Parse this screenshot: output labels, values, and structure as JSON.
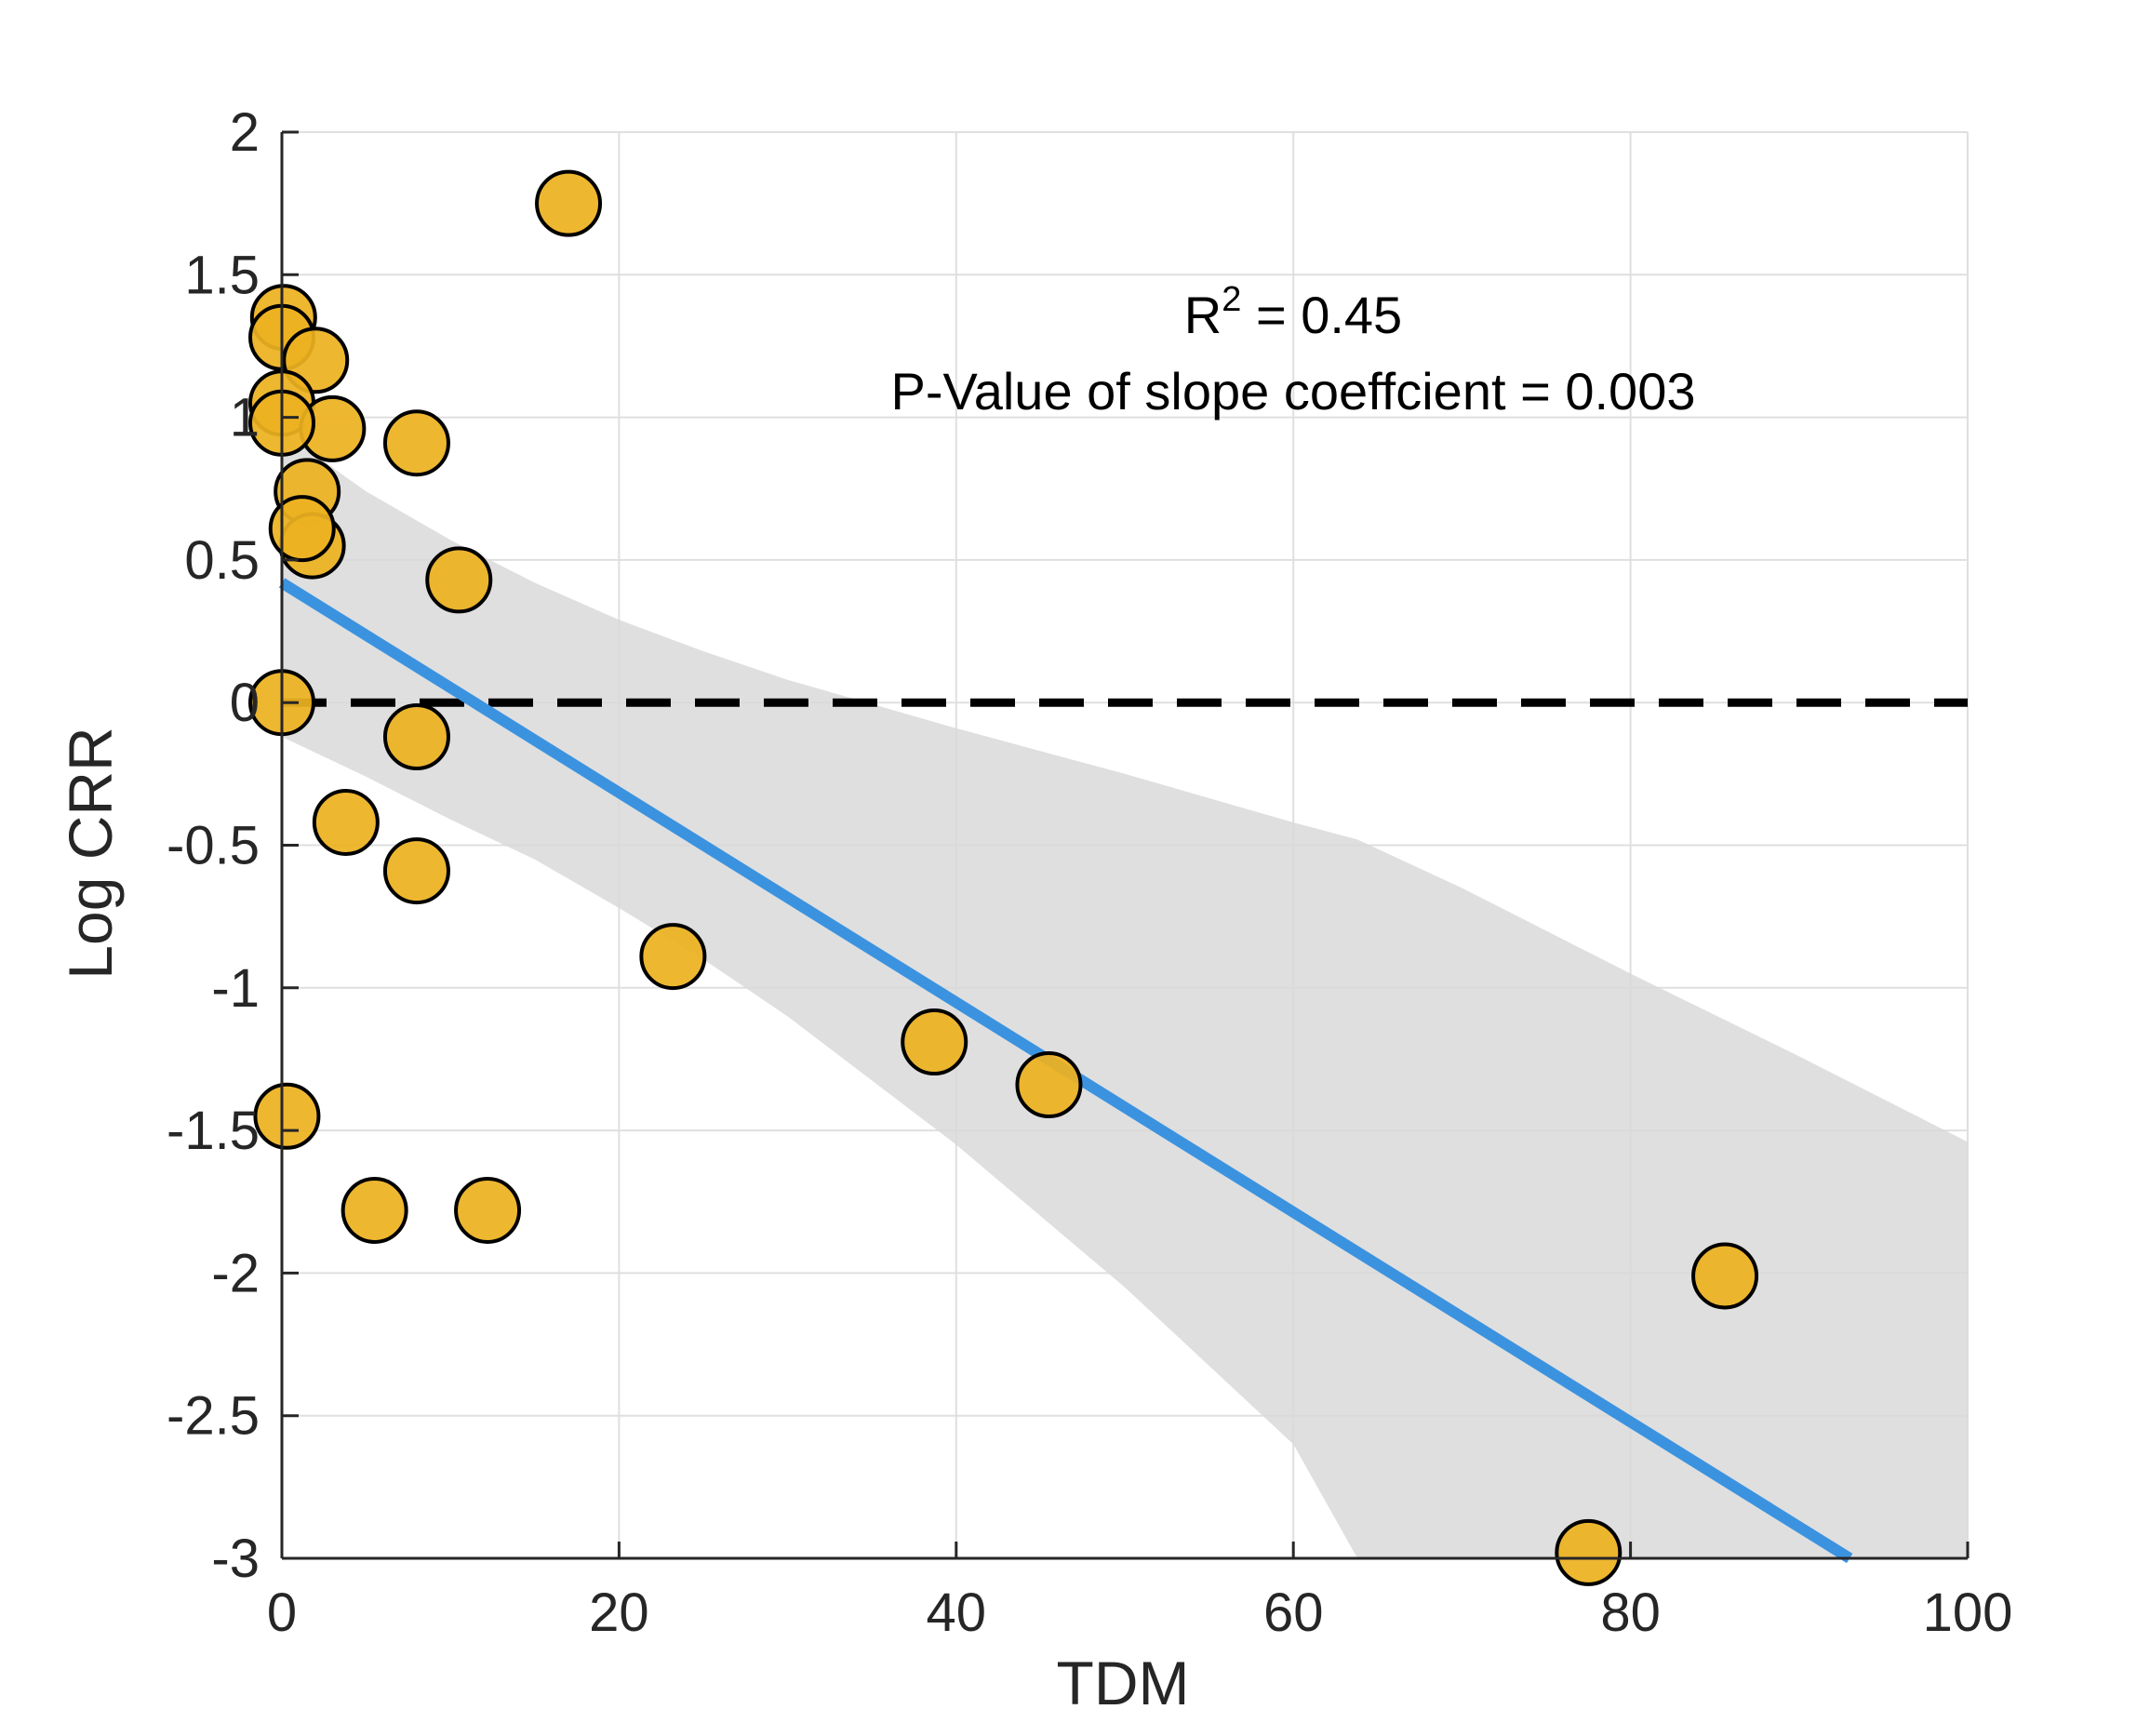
{
  "chart_data": {
    "type": "scatter",
    "title": "",
    "xlabel": "TDM",
    "ylabel": "Log CRR",
    "xlim": [
      0,
      100
    ],
    "ylim": [
      -3,
      2
    ],
    "xticks": [
      0,
      20,
      40,
      60,
      80,
      100
    ],
    "xtick_labels": [
      "0",
      "20",
      "40",
      "60",
      "80",
      "100"
    ],
    "yticks": [
      -3,
      -2.5,
      -2,
      -1.5,
      -1,
      -0.5,
      0,
      0.5,
      1,
      1.5,
      2
    ],
    "ytick_labels": [
      "-3",
      "-2.5",
      "-2",
      "-1.5",
      "-1",
      "-0.5",
      "0",
      "0.5",
      "1",
      "1.5",
      "2"
    ],
    "grid": true,
    "points": [
      {
        "x": 17.0,
        "y": 1.75
      },
      {
        "x": 0.1,
        "y": 1.35
      },
      {
        "x": 0.0,
        "y": 1.28
      },
      {
        "x": 2.0,
        "y": 1.2
      },
      {
        "x": 0.0,
        "y": 1.05
      },
      {
        "x": 3.0,
        "y": 0.96
      },
      {
        "x": 0.0,
        "y": 0.98
      },
      {
        "x": 8.0,
        "y": 0.91
      },
      {
        "x": 1.5,
        "y": 0.74
      },
      {
        "x": 1.8,
        "y": 0.55
      },
      {
        "x": 1.2,
        "y": 0.61
      },
      {
        "x": 10.5,
        "y": 0.43
      },
      {
        "x": 0.0,
        "y": 0.0
      },
      {
        "x": 8.0,
        "y": -0.12
      },
      {
        "x": 3.8,
        "y": -0.42
      },
      {
        "x": 8.0,
        "y": -0.59
      },
      {
        "x": 23.2,
        "y": -0.89
      },
      {
        "x": 38.7,
        "y": -1.19
      },
      {
        "x": 45.5,
        "y": -1.34
      },
      {
        "x": 0.3,
        "y": -1.45
      },
      {
        "x": 5.5,
        "y": -1.78
      },
      {
        "x": 12.2,
        "y": -1.78
      },
      {
        "x": 85.6,
        "y": -2.01
      },
      {
        "x": 77.5,
        "y": -2.98
      }
    ],
    "point_color": "#EDB120",
    "point_edge_color": "#000000",
    "fit_line": {
      "x": [
        0,
        93
      ],
      "y": [
        0.42,
        -3.0
      ],
      "color": "#3B93E0"
    },
    "confidence_band": {
      "color": "#D9D9D9",
      "x": [
        0,
        5,
        10,
        15,
        20,
        25,
        30,
        40,
        50,
        60,
        63.8,
        70,
        80,
        90,
        100
      ],
      "upper": [
        0.95,
        0.74,
        0.57,
        0.42,
        0.29,
        0.18,
        0.08,
        -0.09,
        -0.25,
        -0.42,
        -0.48,
        -0.65,
        -0.95,
        -1.24,
        -1.54
      ],
      "lower": [
        -0.12,
        -0.26,
        -0.41,
        -0.55,
        -0.72,
        -0.9,
        -1.1,
        -1.55,
        -2.05,
        -2.6,
        -3.0,
        -3.0,
        -3.0,
        -3.0,
        -3.0
      ]
    },
    "reference_line": {
      "y": 0,
      "style": "dashed",
      "color": "#000000"
    },
    "annotations": {
      "r2_label": "R",
      "r2_superscript": "2",
      "r2_value": " = 0.45",
      "pvalue_text": "P-Value of slope coeffcient = 0.003"
    }
  }
}
